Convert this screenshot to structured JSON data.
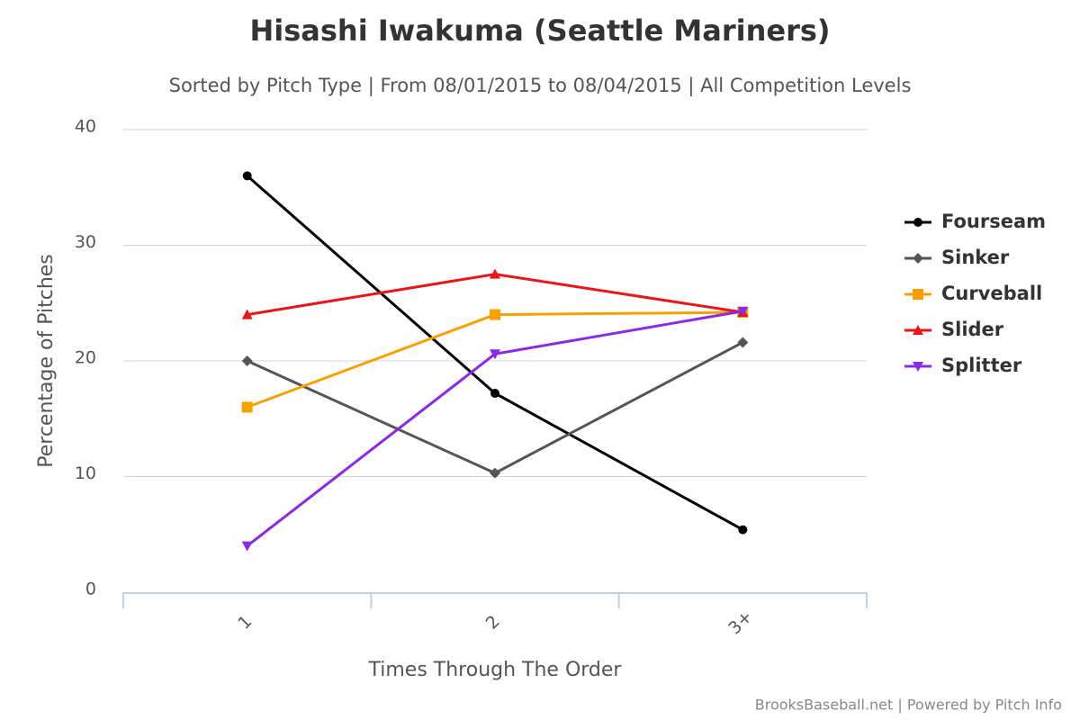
{
  "chart_data": {
    "type": "line",
    "title": "Hisashi Iwakuma (Seattle Mariners)",
    "subtitle": "Sorted by Pitch Type | From 08/01/2015 to 08/04/2015 | All Competition Levels",
    "x_label": "Times Through The Order",
    "y_label": "Percentage of Pitches",
    "credit": "BrooksBaseball.net | Powered by Pitch Info",
    "categories": [
      "1",
      "2",
      "3+"
    ],
    "ylim": [
      0,
      40
    ],
    "yticks": [
      0,
      10,
      20,
      30,
      40
    ],
    "grid": true,
    "legend": "right",
    "series": [
      {
        "name": "Fourseam",
        "color": "#000000",
        "marker": "circle",
        "values": [
          36.0,
          17.2,
          5.4
        ]
      },
      {
        "name": "Sinker",
        "color": "#555555",
        "marker": "diamond",
        "values": [
          20.0,
          10.3,
          21.6
        ]
      },
      {
        "name": "Curveball",
        "color": "#f7a000",
        "marker": "square",
        "values": [
          16.0,
          24.0,
          24.2
        ]
      },
      {
        "name": "Slider",
        "color": "#e8151b",
        "marker": "triangle",
        "values": [
          24.0,
          27.5,
          24.2
        ]
      },
      {
        "name": "Splitter",
        "color": "#8a2be2",
        "marker": "triangle-down",
        "values": [
          4.0,
          20.6,
          24.3
        ]
      }
    ]
  }
}
